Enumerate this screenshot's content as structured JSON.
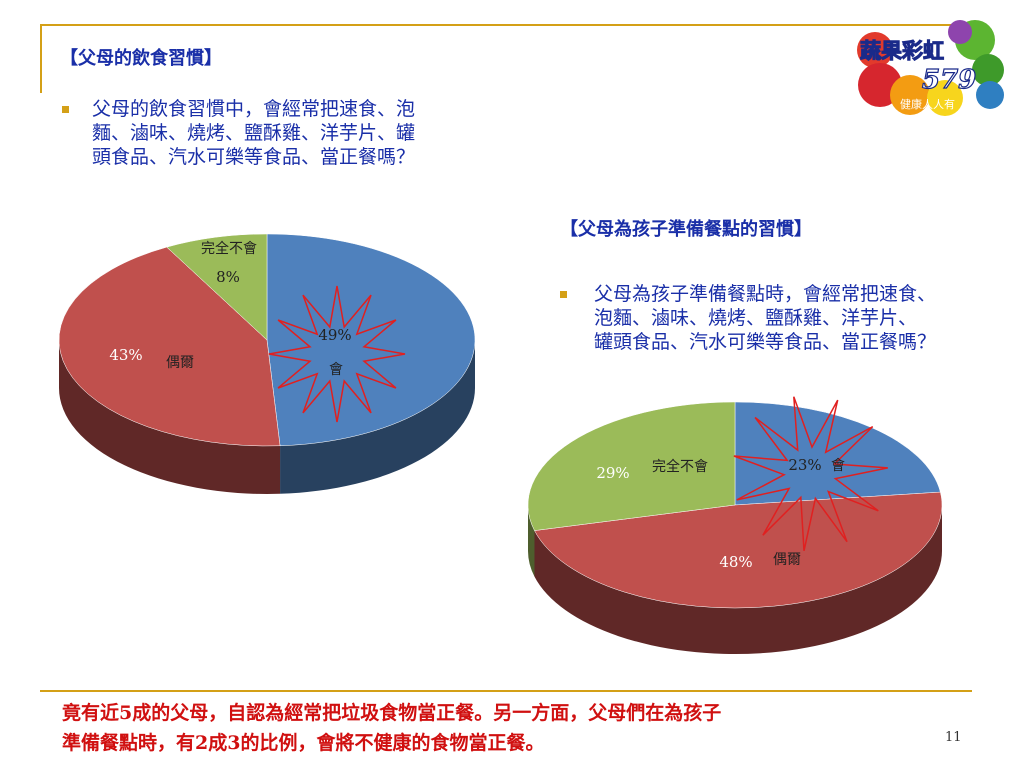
{
  "section1": {
    "title": "【父母的飲食習慣】",
    "question_lines": [
      "父母的飲食習慣中，會經常把速食、泡",
      "麵、滷味、燒烤、鹽酥雞、洋芋片、罐",
      "頭食品、汽水可樂等食品、當正餐嗎？"
    ]
  },
  "section2": {
    "title": "【父母為孩子準備餐點的習慣】",
    "question_lines": [
      "父母為孩子準備餐點時，會經常把速食、",
      "泡麵、滷味、燒烤、鹽酥雞、洋芋片、",
      "罐頭食品、汽水可樂等食品、當正餐嗎？"
    ]
  },
  "logo": {
    "line1": "蔬果彩虹",
    "line2": "579",
    "line3": "健康人人有"
  },
  "chart_data": [
    {
      "type": "pie",
      "categories": [
        "會",
        "偶爾",
        "完全不會"
      ],
      "values": [
        49,
        43,
        8
      ],
      "percent_labels": [
        "49%",
        "43%",
        "8%"
      ],
      "colors": [
        "#4f81bd",
        "#c0504d",
        "#9bbb59"
      ]
    },
    {
      "type": "pie",
      "categories": [
        "會",
        "偶爾",
        "完全不會"
      ],
      "values": [
        23,
        48,
        29
      ],
      "percent_labels": [
        "23%",
        "48%",
        "29%"
      ],
      "colors": [
        "#4f81bd",
        "#c0504d",
        "#9bbb59"
      ]
    }
  ],
  "conclusion_lines": [
    "竟有近5成的父母，自認為經常把垃圾食物當正餐。另一方面，父母們在為孩子",
    "準備餐點時，有2成3的比例，會將不健康的食物當正餐。"
  ],
  "page_number": "11"
}
